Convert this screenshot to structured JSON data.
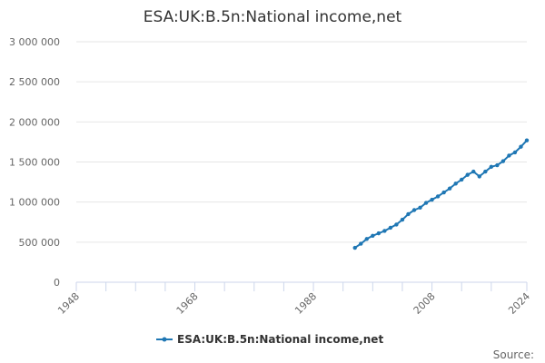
{
  "chart_data": {
    "type": "line",
    "title": "ESA:UK:B.5n:National income,net",
    "xlabel": "",
    "ylabel": "",
    "xlim": [
      1948,
      2024
    ],
    "ylim": [
      0,
      3000000
    ],
    "x_ticks": [
      "1948",
      "1968",
      "1988",
      "2008",
      "2024"
    ],
    "y_ticks": [
      "0",
      "500 000",
      "1 000 000",
      "1 500 000",
      "2 000 000",
      "2 500 000",
      "3 000 000"
    ],
    "y_tick_values": [
      0,
      500000,
      1000000,
      1500000,
      2000000,
      2500000,
      3000000
    ],
    "x_tick_values": [
      1948,
      1968,
      1988,
      2008,
      2024
    ],
    "minor_x_tick_values": [
      1948,
      1953,
      1958,
      1963,
      1968,
      1973,
      1978,
      1983,
      1988,
      1993,
      1998,
      2003,
      2008,
      2013,
      2018,
      2024
    ],
    "grid": "horizontal",
    "legend": "bottom",
    "source_label": "Source:",
    "series": [
      {
        "name": "ESA:UK:B.5n:National income,net",
        "color": "#1f77b4",
        "x": [
          1995,
          1996,
          1997,
          1998,
          1999,
          2000,
          2001,
          2002,
          2003,
          2004,
          2005,
          2006,
          2007,
          2008,
          2009,
          2010,
          2011,
          2012,
          2013,
          2014,
          2015,
          2016,
          2017,
          2018,
          2019,
          2020,
          2021,
          2022,
          2023,
          2024
        ],
        "values": [
          430000,
          480000,
          540000,
          580000,
          610000,
          640000,
          680000,
          720000,
          780000,
          850000,
          900000,
          930000,
          990000,
          1030000,
          1070000,
          1120000,
          1170000,
          1230000,
          1280000,
          1340000,
          1380000,
          1320000,
          1380000,
          1440000,
          1460000,
          1510000,
          1580000,
          1620000,
          1690000,
          1770000
        ]
      }
    ]
  }
}
